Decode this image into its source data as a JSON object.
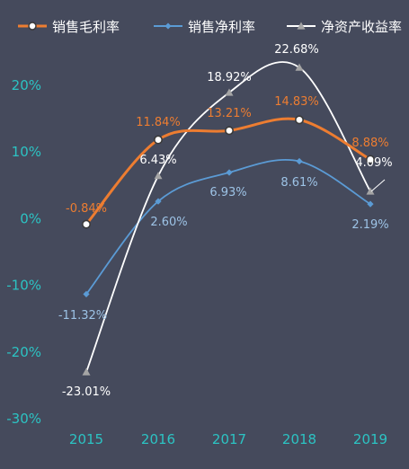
{
  "chart_data": {
    "type": "line",
    "categories": [
      "2015",
      "2016",
      "2017",
      "2018",
      "2019"
    ],
    "y_tick_labels": [
      "20%",
      "10%",
      "0%",
      "-10%",
      "-20%",
      "-30%"
    ],
    "ylim": [
      -30,
      25
    ],
    "grid": false,
    "legend_position": "top",
    "series": [
      {
        "name": "销售毛利率",
        "values": [
          -0.84,
          11.84,
          13.21,
          14.83,
          8.88
        ],
        "labels": [
          "-0.84%",
          "11.84%",
          "13.21%",
          "14.83%",
          "8.88%"
        ],
        "color": "#ed7d31",
        "marker": "circle"
      },
      {
        "name": "销售净利率",
        "values": [
          -11.32,
          2.6,
          6.93,
          8.61,
          2.19
        ],
        "labels": [
          "-11.32%",
          "2.60%",
          "6.93%",
          "8.61%",
          "2.19%"
        ],
        "color": "#5b9bd5",
        "marker": "diamond"
      },
      {
        "name": "净资产收益率",
        "values": [
          -23.01,
          6.43,
          18.92,
          22.68,
          4.09
        ],
        "labels": [
          "-23.01%",
          "6.43%",
          "18.92%",
          "22.68%",
          "4.09%"
        ],
        "color": "#ffffff",
        "marker": "triangle"
      }
    ]
  },
  "colors": {
    "background": "#454a5c",
    "axis_text": "#2cc3c3",
    "net_label": "#9dc3e6",
    "gross_label": "#ed7d31",
    "roe_label": "#ffffff"
  }
}
